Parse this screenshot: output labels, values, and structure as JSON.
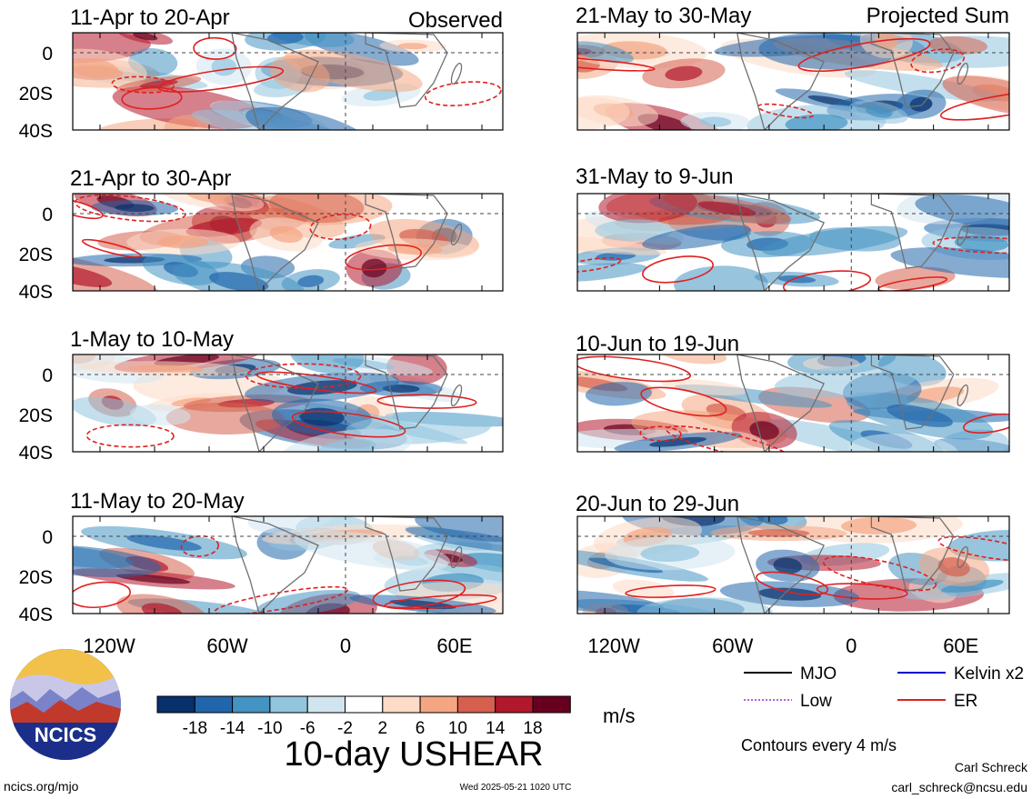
{
  "headers": {
    "observed": "Observed",
    "projected": "Projected Sum"
  },
  "chart_data": [
    {
      "type": "heatmap",
      "column": "Observed",
      "title": "11-Apr to 20-Apr",
      "ytick_labels": [
        "0",
        "20S",
        "40S"
      ]
    },
    {
      "type": "heatmap",
      "column": "Observed",
      "title": "21-Apr to 30-Apr",
      "ytick_labels": [
        "0",
        "20S",
        "40S"
      ]
    },
    {
      "type": "heatmap",
      "column": "Observed",
      "title": "1-May to 10-May",
      "ytick_labels": [
        "0",
        "20S",
        "40S"
      ]
    },
    {
      "type": "heatmap",
      "column": "Observed",
      "title": "11-May to 20-May",
      "ytick_labels": [
        "0",
        "20S",
        "40S"
      ],
      "xtick_labels": [
        "120W",
        "60W",
        "0",
        "60E"
      ]
    },
    {
      "type": "heatmap",
      "column": "Projected Sum",
      "title": "21-May to 30-May"
    },
    {
      "type": "heatmap",
      "column": "Projected Sum",
      "title": "31-May to 9-Jun"
    },
    {
      "type": "heatmap",
      "column": "Projected Sum",
      "title": "10-Jun to 19-Jun"
    },
    {
      "type": "heatmap",
      "column": "Projected Sum",
      "title": "20-Jun to 29-Jun",
      "xtick_labels": [
        "120W",
        "60W",
        "0",
        "60E"
      ]
    }
  ],
  "colorbar": {
    "labels": [
      "-18",
      "-14",
      "-10",
      "-6",
      "-2",
      "2",
      "6",
      "10",
      "14",
      "18"
    ],
    "colors": [
      "#08306b",
      "#2166ac",
      "#4393c3",
      "#92c5de",
      "#d1e5f0",
      "#ffffff",
      "#fddbc7",
      "#f4a582",
      "#d6604d",
      "#b2182b",
      "#67001f"
    ],
    "units": "m/s",
    "title": "10-day USHEAR"
  },
  "legend": [
    {
      "label": "MJO",
      "color": "#000000",
      "style": "solid"
    },
    {
      "label": "Kelvin x2",
      "color": "#0000cc",
      "style": "solid"
    },
    {
      "label": "Low",
      "color": "#b060e0",
      "style": "dotted"
    },
    {
      "label": "ER",
      "color": "#e02020",
      "style": "solid"
    }
  ],
  "contour_note": "Contours every 4 m/s",
  "logo_text": "NCICS",
  "footer": {
    "url": "ncics.org/mjo",
    "timestamp": "Wed 2025-05-21 1020 UTC",
    "author": "Carl Schreck",
    "email": "carl_schreck@ncsu.edu"
  }
}
